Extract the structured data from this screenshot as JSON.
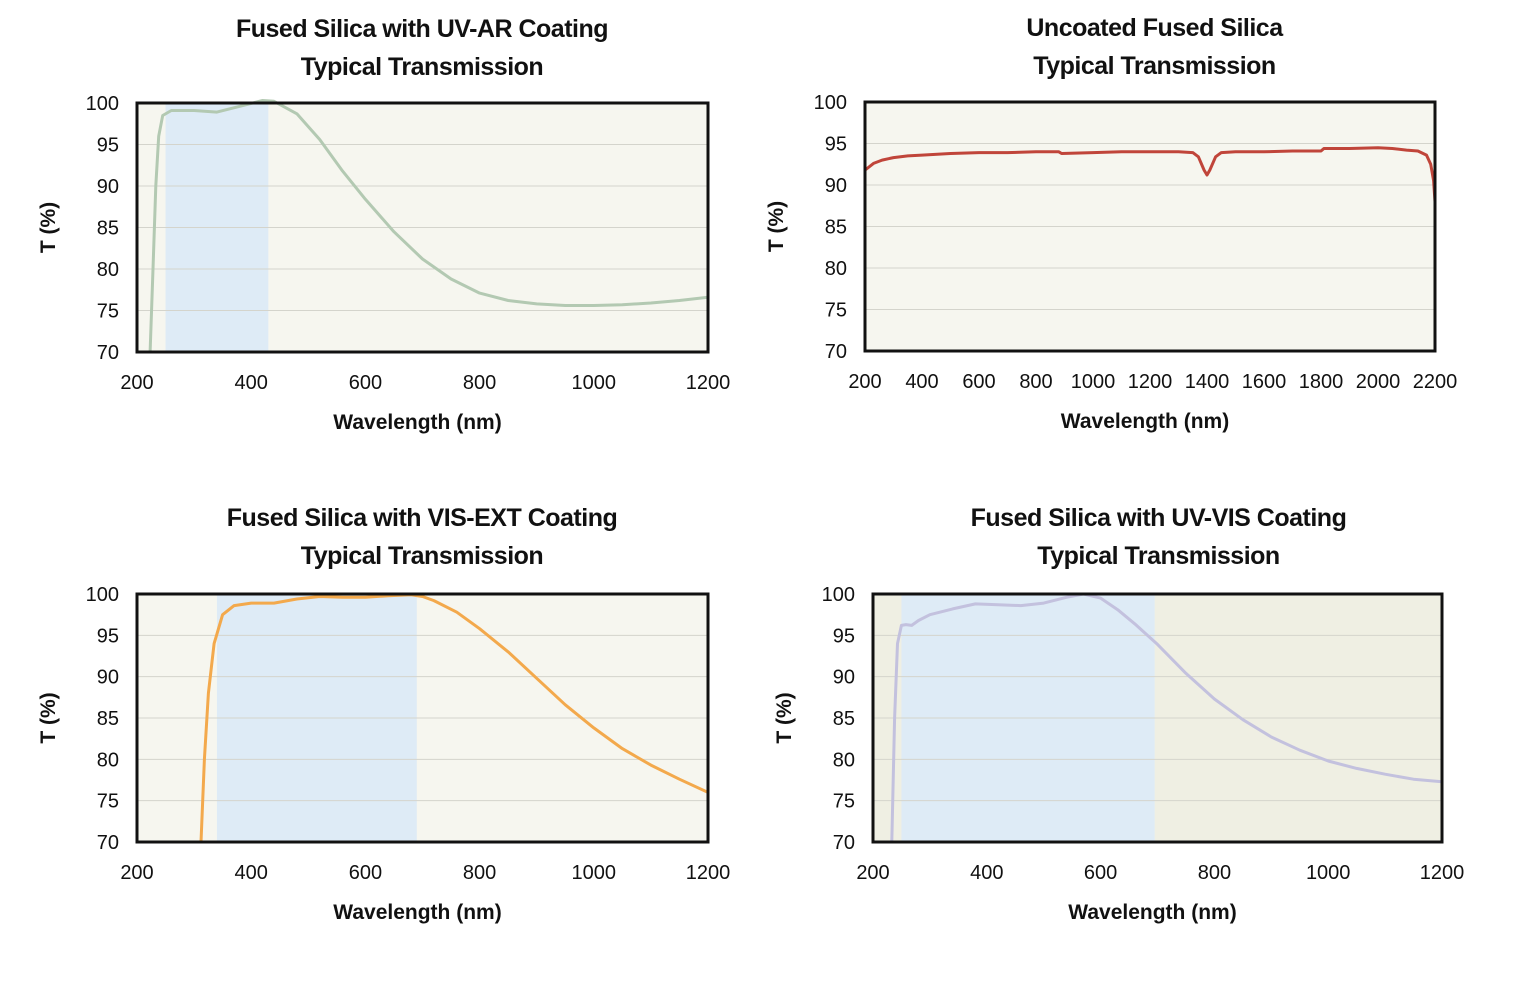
{
  "chart_data": [
    {
      "type": "line",
      "title": "Fused Silica with UV-AR Coating",
      "subtitle": "Typical Transmission",
      "xlabel": "Wavelength (nm)",
      "ylabel": "T (%)",
      "xlim": [
        200,
        1200
      ],
      "ylim": [
        70,
        100
      ],
      "xticks": [
        "200",
        "400",
        "600",
        "800",
        "1000",
        "1200"
      ],
      "yticks": [
        "100",
        "95",
        "90",
        "85",
        "80",
        "75",
        "70"
      ],
      "grid": true,
      "band": [
        250,
        430
      ],
      "series": [
        {
          "color": "#b3c9b2",
          "x": [
            223,
            228,
            233,
            238,
            245,
            260,
            300,
            340,
            380,
            420,
            440,
            480,
            520,
            560,
            600,
            650,
            700,
            750,
            800,
            850,
            900,
            950,
            1000,
            1050,
            1100,
            1150,
            1200
          ],
          "y": [
            70,
            80,
            90,
            96,
            98.5,
            99.1,
            99.1,
            98.9,
            99.6,
            100.3,
            100.2,
            98.7,
            95.6,
            91.8,
            88.4,
            84.5,
            81.2,
            78.8,
            77.1,
            76.2,
            75.8,
            75.6,
            75.6,
            75.7,
            75.9,
            76.2,
            76.6
          ]
        }
      ]
    },
    {
      "type": "line",
      "title": "Uncoated Fused Silica",
      "subtitle": "Typical Transmission",
      "xlabel": "Wavelength (nm)",
      "ylabel": "T (%)",
      "xlim": [
        200,
        2200
      ],
      "ylim": [
        70,
        100
      ],
      "xticks": [
        "200",
        "400",
        "600",
        "800",
        "1000",
        "1200",
        "1400",
        "1600",
        "1800",
        "2000",
        "2200"
      ],
      "yticks": [
        "100",
        "95",
        "90",
        "85",
        "80",
        "75",
        "70"
      ],
      "grid": true,
      "band": null,
      "series": [
        {
          "color": "#c0453a",
          "x": [
            200,
            230,
            260,
            300,
            350,
            400,
            500,
            600,
            700,
            800,
            880,
            890,
            1000,
            1100,
            1200,
            1300,
            1350,
            1370,
            1390,
            1400,
            1410,
            1430,
            1450,
            1500,
            1600,
            1700,
            1800,
            1810,
            1900,
            2000,
            2050,
            2100,
            2140,
            2170,
            2185,
            2195,
            2200
          ],
          "y": [
            91.8,
            92.6,
            93.0,
            93.3,
            93.5,
            93.6,
            93.8,
            93.9,
            93.9,
            94.0,
            94.0,
            93.8,
            93.9,
            94.0,
            94.0,
            94.0,
            93.9,
            93.4,
            91.8,
            91.2,
            91.8,
            93.4,
            93.9,
            94.0,
            94.0,
            94.1,
            94.1,
            94.4,
            94.4,
            94.5,
            94.4,
            94.2,
            94.1,
            93.6,
            92.5,
            90.5,
            88.0
          ]
        }
      ]
    },
    {
      "type": "line",
      "title": "Fused Silica with VIS-EXT Coating",
      "subtitle": "Typical Transmission",
      "xlabel": "Wavelength (nm)",
      "ylabel": "T (%)",
      "xlim": [
        200,
        1200
      ],
      "ylim": [
        70,
        100
      ],
      "xticks": [
        "200",
        "400",
        "600",
        "800",
        "1000",
        "1200"
      ],
      "yticks": [
        "100",
        "95",
        "90",
        "85",
        "80",
        "75",
        "70"
      ],
      "grid": true,
      "band": [
        340,
        690
      ],
      "series": [
        {
          "color": "#f3a94c",
          "x": [
            312,
            318,
            325,
            335,
            350,
            370,
            400,
            440,
            480,
            520,
            560,
            600,
            640,
            680,
            700,
            720,
            760,
            800,
            850,
            900,
            950,
            1000,
            1050,
            1100,
            1150,
            1200
          ],
          "y": [
            70,
            80,
            88,
            94,
            97.5,
            98.6,
            98.9,
            98.9,
            99.4,
            99.7,
            99.6,
            99.6,
            99.8,
            99.9,
            99.7,
            99.2,
            97.8,
            95.8,
            93.0,
            89.8,
            86.6,
            83.8,
            81.3,
            79.3,
            77.6,
            76.0
          ]
        }
      ]
    },
    {
      "type": "line",
      "title": "Fused Silica with UV-VIS Coating",
      "subtitle": "Typical Transmission",
      "xlabel": "Wavelength (nm)",
      "ylabel": "T (%)",
      "xlim": [
        200,
        1200
      ],
      "ylim": [
        70,
        100
      ],
      "xticks": [
        "200",
        "400",
        "600",
        "800",
        "1000",
        "1200"
      ],
      "yticks": [
        "100",
        "95",
        "90",
        "85",
        "80",
        "75",
        "70"
      ],
      "grid": true,
      "band": [
        250,
        695
      ],
      "series": [
        {
          "color": "#c3c1de",
          "x": [
            233,
            238,
            243,
            250,
            258,
            268,
            280,
            300,
            340,
            380,
            420,
            460,
            500,
            540,
            570,
            600,
            630,
            660,
            700,
            750,
            800,
            850,
            900,
            950,
            1000,
            1050,
            1100,
            1150,
            1200
          ],
          "y": [
            70,
            85,
            94,
            96.2,
            96.3,
            96.2,
            96.8,
            97.5,
            98.2,
            98.8,
            98.7,
            98.6,
            98.9,
            99.6,
            100.0,
            99.5,
            98.1,
            96.4,
            93.9,
            90.4,
            87.3,
            84.8,
            82.7,
            81.1,
            79.8,
            78.9,
            78.2,
            77.6,
            77.3
          ]
        }
      ]
    }
  ]
}
